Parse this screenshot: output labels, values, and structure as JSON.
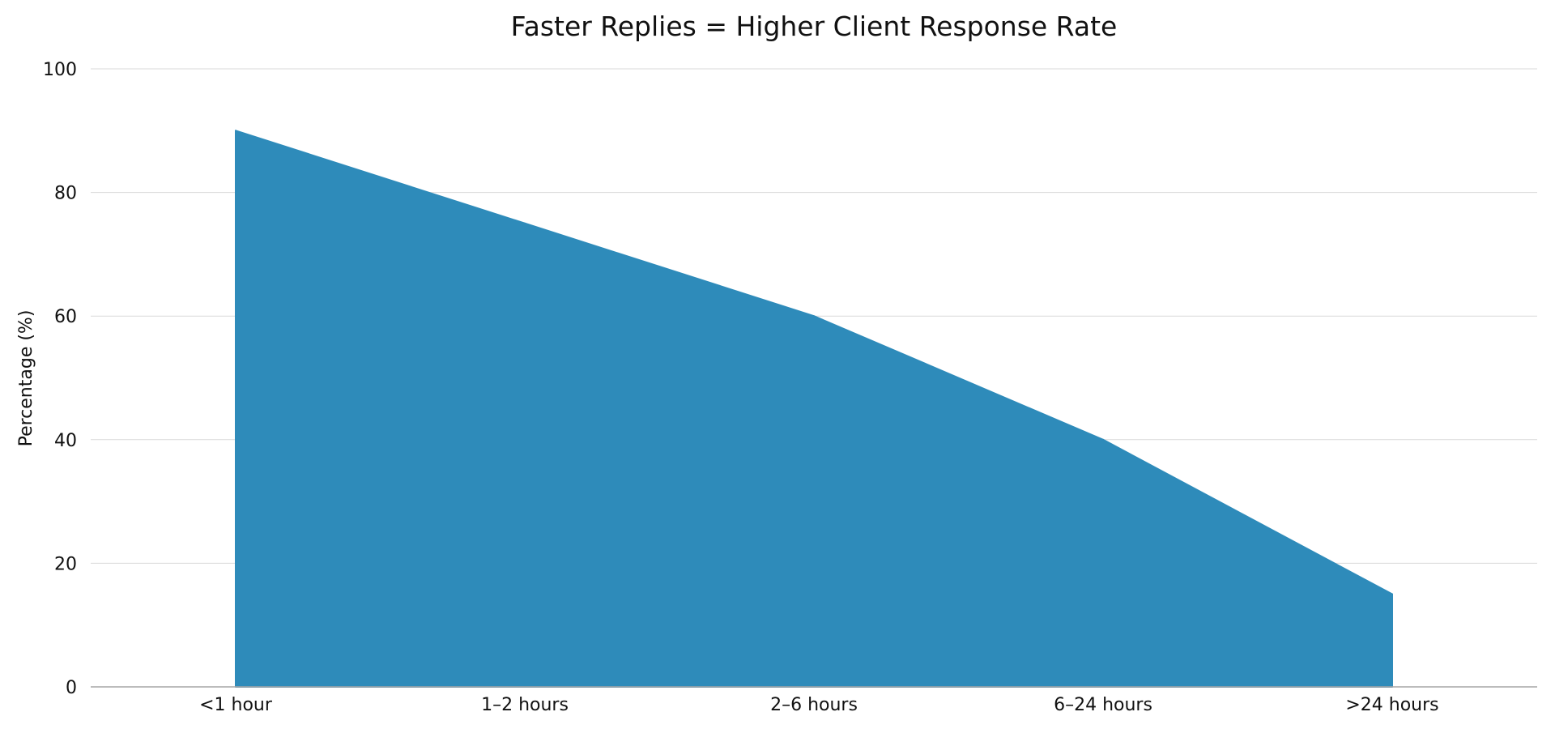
{
  "chart_data": {
    "type": "area",
    "title": "Faster Replies = Higher Client Response Rate",
    "xlabel": "",
    "ylabel": "Percentage (%)",
    "categories": [
      "<1 hour",
      "1–2 hours",
      "2–6 hours",
      "6–24 hours",
      ">24 hours"
    ],
    "series": [
      {
        "values": [
          90,
          75,
          60,
          40,
          15
        ]
      }
    ],
    "ylim": [
      0,
      100
    ],
    "yticks": [
      "0",
      "20",
      "40",
      "60",
      "80",
      "100"
    ],
    "grid": "horizontal",
    "legend": "none",
    "fill_color": "#2e8bba"
  }
}
